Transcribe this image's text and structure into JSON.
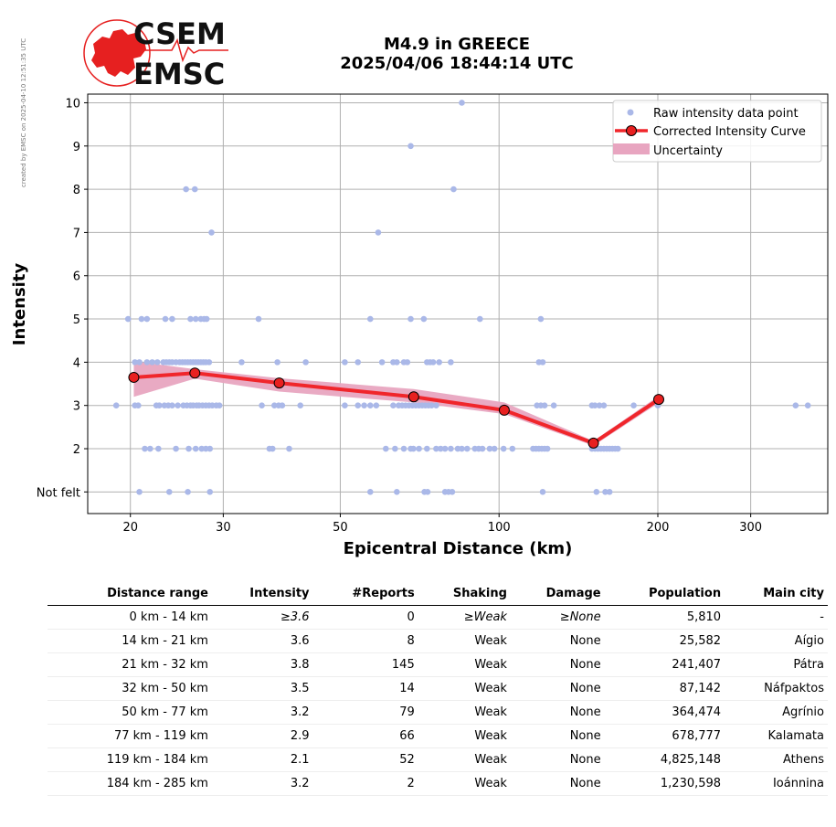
{
  "credit": "created by EMSC on 2025-04-10 12:51:35 UTC",
  "logo": {
    "line1": "CSEM",
    "line2": "EMSC",
    "color": "#e62020"
  },
  "title_line1": "M4.9 in GREECE",
  "title_line2": "2025/04/06 18:44:14 UTC",
  "chart_data": {
    "type": "scatter",
    "title": "M4.9 in GREECE 2025/04/06 18:44:14 UTC",
    "xlabel": "Epicentral Distance (km)",
    "ylabel": "Intensity",
    "xscale": "log",
    "xlim": [
      16.6,
      420
    ],
    "ylim": [
      0.5,
      10.2
    ],
    "xticks": [
      20,
      30,
      50,
      100,
      200,
      300
    ],
    "yticks": [
      1,
      2,
      3,
      4,
      5,
      6,
      7,
      8,
      9,
      10
    ],
    "ytick_labels": [
      "Not felt",
      "2",
      "3",
      "4",
      "5",
      "6",
      "7",
      "8",
      "9",
      "10"
    ],
    "grid": true,
    "legend_position": "top-right",
    "legend": [
      "Raw intensity data point",
      "Corrected Intensity Curve",
      "Uncertainty"
    ],
    "colors": {
      "raw": "#aab8e8",
      "curve": "#f0262b",
      "marker": "#e82020",
      "uncertainty": "#e8a5c0"
    },
    "raw_points": [
      [
        85,
        10
      ],
      [
        68,
        9
      ],
      [
        25.5,
        8
      ],
      [
        26.5,
        8
      ],
      [
        82,
        8
      ],
      [
        28.5,
        7
      ],
      [
        59,
        7
      ],
      [
        19.8,
        5
      ],
      [
        21,
        5
      ],
      [
        21.5,
        5
      ],
      [
        23.3,
        5
      ],
      [
        24,
        5
      ],
      [
        26,
        5
      ],
      [
        26.6,
        5
      ],
      [
        27.2,
        5
      ],
      [
        27.6,
        5
      ],
      [
        27.9,
        5
      ],
      [
        35,
        5
      ],
      [
        57,
        5
      ],
      [
        68,
        5
      ],
      [
        72,
        5
      ],
      [
        92,
        5
      ],
      [
        120,
        5
      ],
      [
        20.4,
        4
      ],
      [
        20.8,
        4
      ],
      [
        21.5,
        4
      ],
      [
        22,
        4
      ],
      [
        22.5,
        4
      ],
      [
        23.1,
        4
      ],
      [
        23.4,
        4
      ],
      [
        23.7,
        4
      ],
      [
        24,
        4
      ],
      [
        24.4,
        4
      ],
      [
        24.8,
        4
      ],
      [
        25.1,
        4
      ],
      [
        25.4,
        4
      ],
      [
        25.7,
        4
      ],
      [
        26,
        4
      ],
      [
        26.3,
        4
      ],
      [
        26.6,
        4
      ],
      [
        26.9,
        4
      ],
      [
        27.2,
        4
      ],
      [
        27.5,
        4
      ],
      [
        27.8,
        4
      ],
      [
        28.2,
        4
      ],
      [
        32.5,
        4
      ],
      [
        38,
        4
      ],
      [
        43,
        4
      ],
      [
        51,
        4
      ],
      [
        54,
        4
      ],
      [
        60,
        4
      ],
      [
        63,
        4
      ],
      [
        64,
        4
      ],
      [
        66,
        4
      ],
      [
        67,
        4
      ],
      [
        73,
        4
      ],
      [
        74,
        4
      ],
      [
        75,
        4
      ],
      [
        77,
        4
      ],
      [
        81,
        4
      ],
      [
        119,
        4
      ],
      [
        121,
        4
      ],
      [
        18.8,
        3
      ],
      [
        20.4,
        3
      ],
      [
        20.7,
        3
      ],
      [
        22.4,
        3
      ],
      [
        22.7,
        3
      ],
      [
        23.2,
        3
      ],
      [
        23.6,
        3
      ],
      [
        24,
        3
      ],
      [
        24.6,
        3
      ],
      [
        25.2,
        3
      ],
      [
        25.6,
        3
      ],
      [
        26,
        3
      ],
      [
        26.3,
        3
      ],
      [
        26.7,
        3
      ],
      [
        27,
        3
      ],
      [
        27.4,
        3
      ],
      [
        27.8,
        3
      ],
      [
        28.2,
        3
      ],
      [
        28.6,
        3
      ],
      [
        29.1,
        3
      ],
      [
        29.5,
        3
      ],
      [
        35.5,
        3
      ],
      [
        37.5,
        3
      ],
      [
        38.2,
        3
      ],
      [
        38.8,
        3
      ],
      [
        42,
        3
      ],
      [
        51,
        3
      ],
      [
        54,
        3
      ],
      [
        55.5,
        3
      ],
      [
        57,
        3
      ],
      [
        58.5,
        3
      ],
      [
        63,
        3
      ],
      [
        64.5,
        3
      ],
      [
        65.5,
        3
      ],
      [
        66.5,
        3
      ],
      [
        67.5,
        3
      ],
      [
        68.5,
        3
      ],
      [
        69.5,
        3
      ],
      [
        70.5,
        3
      ],
      [
        71.5,
        3
      ],
      [
        72.5,
        3
      ],
      [
        73.5,
        3
      ],
      [
        74.5,
        3
      ],
      [
        76,
        3
      ],
      [
        118,
        3
      ],
      [
        120,
        3
      ],
      [
        122,
        3
      ],
      [
        127,
        3
      ],
      [
        150,
        3
      ],
      [
        152,
        3
      ],
      [
        155,
        3
      ],
      [
        158,
        3
      ],
      [
        180,
        3
      ],
      [
        200,
        3
      ],
      [
        365,
        3
      ],
      [
        385,
        3
      ],
      [
        21.3,
        2
      ],
      [
        21.8,
        2
      ],
      [
        22.6,
        2
      ],
      [
        24.4,
        2
      ],
      [
        25.8,
        2
      ],
      [
        26.6,
        2
      ],
      [
        27.3,
        2
      ],
      [
        27.8,
        2
      ],
      [
        28.3,
        2
      ],
      [
        36.7,
        2
      ],
      [
        37.2,
        2
      ],
      [
        40,
        2
      ],
      [
        61,
        2
      ],
      [
        63.5,
        2
      ],
      [
        66,
        2
      ],
      [
        68,
        2
      ],
      [
        68.8,
        2
      ],
      [
        70.5,
        2
      ],
      [
        73,
        2
      ],
      [
        76,
        2
      ],
      [
        77.5,
        2
      ],
      [
        79,
        2
      ],
      [
        81,
        2
      ],
      [
        83.5,
        2
      ],
      [
        85,
        2
      ],
      [
        87,
        2
      ],
      [
        90,
        2
      ],
      [
        91.5,
        2
      ],
      [
        93,
        2
      ],
      [
        96,
        2
      ],
      [
        98,
        2
      ],
      [
        102,
        2
      ],
      [
        106,
        2
      ],
      [
        116,
        2
      ],
      [
        117.5,
        2
      ],
      [
        119,
        2
      ],
      [
        120.5,
        2
      ],
      [
        122,
        2
      ],
      [
        123.5,
        2
      ],
      [
        150,
        2
      ],
      [
        152,
        2
      ],
      [
        154,
        2
      ],
      [
        156,
        2
      ],
      [
        158,
        2
      ],
      [
        160,
        2
      ],
      [
        162,
        2
      ],
      [
        164,
        2
      ],
      [
        166,
        2
      ],
      [
        168,
        2
      ],
      [
        20.8,
        1
      ],
      [
        23.7,
        1
      ],
      [
        25.7,
        1
      ],
      [
        28.3,
        1
      ],
      [
        57,
        1
      ],
      [
        64,
        1
      ],
      [
        72.2,
        1
      ],
      [
        73.2,
        1
      ],
      [
        79,
        1
      ],
      [
        80.2,
        1
      ],
      [
        81.5,
        1
      ],
      [
        121,
        1
      ],
      [
        153,
        1
      ],
      [
        159,
        1
      ],
      [
        162,
        1
      ]
    ],
    "curve": [
      [
        20.3,
        3.65
      ],
      [
        26.5,
        3.75
      ],
      [
        38.3,
        3.52
      ],
      [
        68.9,
        3.2
      ],
      [
        102.3,
        2.89
      ],
      [
        151,
        2.13
      ],
      [
        200.8,
        3.14
      ]
    ],
    "uncertainty_upper": [
      [
        20.3,
        4.02
      ],
      [
        26.5,
        3.84
      ],
      [
        38.3,
        3.63
      ],
      [
        68.9,
        3.38
      ],
      [
        102.3,
        3.07
      ],
      [
        151,
        2.18
      ],
      [
        200.8,
        3.22
      ]
    ],
    "uncertainty_lower": [
      [
        20.3,
        3.2
      ],
      [
        26.5,
        3.62
      ],
      [
        38.3,
        3.32
      ],
      [
        68.9,
        3.07
      ],
      [
        102.3,
        2.8
      ],
      [
        151,
        2.07
      ],
      [
        200.8,
        3.06
      ]
    ]
  },
  "table": {
    "headers": [
      "Distance range",
      "Intensity",
      "#Reports",
      "Shaking",
      "Damage",
      "Population",
      "Main city"
    ],
    "rows": [
      [
        "0 km -   14 km",
        "≥3.6",
        "0",
        "≥Weak",
        "≥None",
        "5,810",
        "-"
      ],
      [
        "14 km -   21 km",
        "3.6",
        "8",
        "Weak",
        "None",
        "25,582",
        "Aígio"
      ],
      [
        "21 km -   32 km",
        "3.8",
        "145",
        "Weak",
        "None",
        "241,407",
        "Pátra"
      ],
      [
        "32 km -   50 km",
        "3.5",
        "14",
        "Weak",
        "None",
        "87,142",
        "Náfpaktos"
      ],
      [
        "50 km -   77 km",
        "3.2",
        "79",
        "Weak",
        "None",
        "364,474",
        "Agrínio"
      ],
      [
        "77 km -  119 km",
        "2.9",
        "66",
        "Weak",
        "None",
        "678,777",
        "Kalamata"
      ],
      [
        "119 km -  184 km",
        "2.1",
        "52",
        "Weak",
        "None",
        "4,825,148",
        "Athens"
      ],
      [
        "184 km -  285 km",
        "3.2",
        "2",
        "Weak",
        "None",
        "1,230,598",
        "Ioánnina"
      ]
    ]
  }
}
